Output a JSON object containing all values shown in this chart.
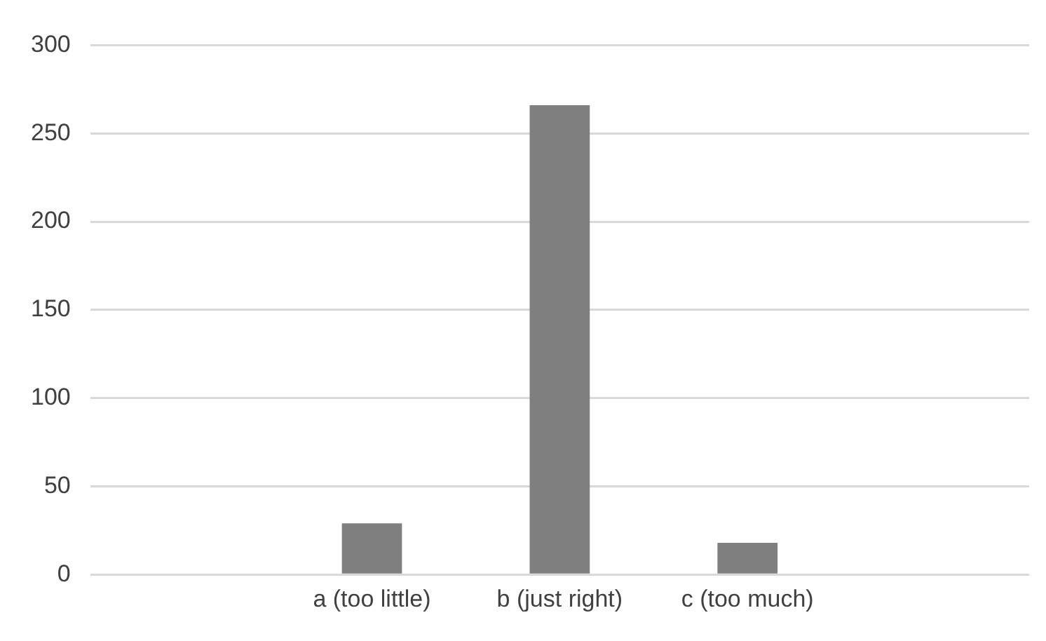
{
  "chart_data": {
    "type": "bar",
    "categories": [
      null,
      "a (too little)",
      "b (just right)",
      "c (too much)",
      null
    ],
    "values": [
      null,
      29,
      266,
      18,
      null
    ],
    "color": "#7f7f7f",
    "ylim": [
      0,
      300
    ],
    "yticks": [
      0,
      50,
      100,
      150,
      200,
      250,
      300
    ],
    "grid": "y",
    "legend": false
  }
}
